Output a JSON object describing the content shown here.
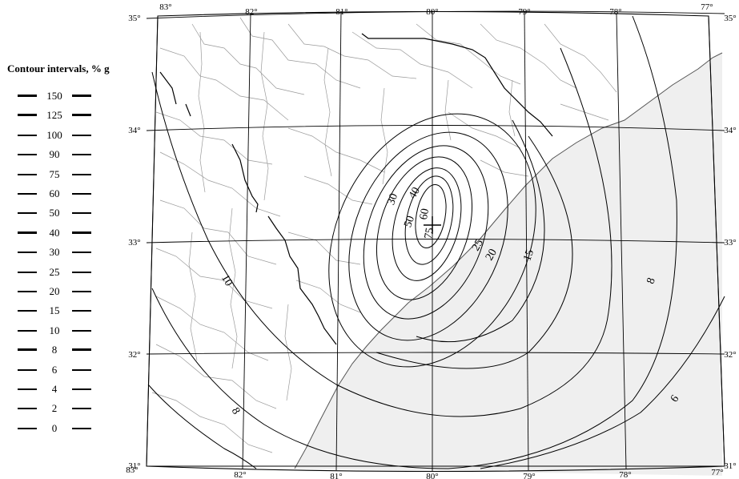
{
  "legend": {
    "title": "Contour intervals, % g",
    "values": [
      "150",
      "125",
      "100",
      "90",
      "75",
      "60",
      "50",
      "40",
      "30",
      "25",
      "20",
      "15",
      "10",
      "8",
      "6",
      "4",
      "2",
      "0"
    ]
  },
  "map": {
    "longitudes": [
      "83°",
      "82°",
      "81°",
      "80°",
      "79°",
      "78°",
      "77°"
    ],
    "latitudes": [
      "35°",
      "34°",
      "33°",
      "32°",
      "31°"
    ],
    "contour_labels": [
      "6",
      "8",
      "8",
      "10",
      "15",
      "20",
      "25",
      "30",
      "40",
      "50",
      "60",
      "75"
    ],
    "colors": {
      "ocean": "#efefef",
      "county_lines": "#9a9a9a",
      "contours": "#000000"
    }
  }
}
